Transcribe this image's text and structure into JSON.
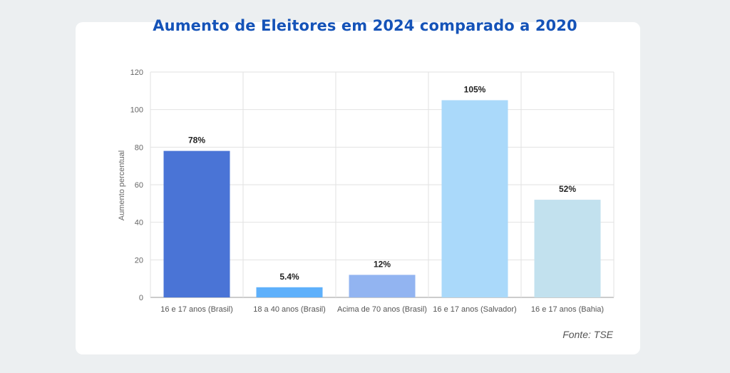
{
  "chart_data": {
    "type": "bar",
    "title": "Aumento de Eleitores em 2024 comparado a 2020",
    "ylabel": "Aumento percentual",
    "xlabel": "",
    "ylim": [
      0,
      120
    ],
    "yticks": [
      0,
      20,
      40,
      60,
      80,
      100,
      120
    ],
    "grid": true,
    "categories": [
      "16 e 17 anos (Brasil)",
      "18 a 40 anos (Brasil)",
      "Acima de 70 anos (Brasil)",
      "16 e 17 anos (Salvador)",
      "16 e 17 anos (Bahia)"
    ],
    "values": [
      78,
      5.4,
      12,
      105,
      52
    ],
    "data_labels": [
      "78%",
      "5.4%",
      "12%",
      "105%",
      "52%"
    ],
    "colors": [
      "#4a74d6",
      "#5eb0fb",
      "#92b4f1",
      "#aad9fa",
      "#c2e1ee"
    ]
  },
  "source": "Fonte: TSE"
}
